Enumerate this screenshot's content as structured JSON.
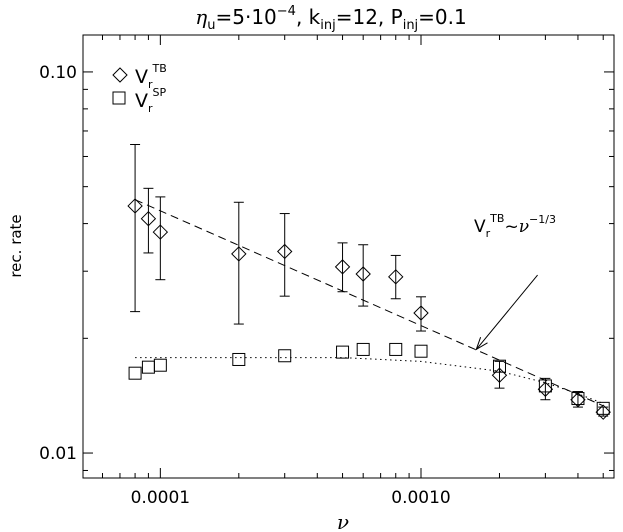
{
  "chart_data": {
    "type": "scatter",
    "title": {
      "eta_symbol": "η",
      "eta_sub": "u",
      "eta_value_pre": "=5·10",
      "eta_exp": "−4",
      "k_main": ", k",
      "k_sub": "inj",
      "k_value": "=12, ",
      "p_main": "P",
      "p_sub": "inj",
      "p_value": "=0.1"
    },
    "xlabel": "ν",
    "ylabel": "rec. rate",
    "x_scale": "log",
    "y_scale": "log",
    "xlim": [
      5.05e-05,
      0.0055
    ],
    "ylim": [
      0.0086,
      0.125
    ],
    "x_ticks": [
      {
        "value": 0.0001,
        "label": "0.0001"
      },
      {
        "value": 0.001,
        "label": "0.0010"
      }
    ],
    "y_ticks": [
      {
        "value": 0.01,
        "label": "0.01"
      },
      {
        "value": 0.1,
        "label": "0.10"
      }
    ],
    "legend": {
      "placement": "top-left",
      "entries": [
        {
          "marker": "diamond",
          "main": "V",
          "sub": "r",
          "sup": "TB"
        },
        {
          "marker": "square",
          "main": "V",
          "sub": "r",
          "sup": "SP"
        }
      ]
    },
    "series": [
      {
        "marker": "diamond",
        "points": [
          {
            "x": 8e-05,
            "y": 0.0445,
            "ylo": 0.0235,
            "yhi": 0.0645
          },
          {
            "x": 9e-05,
            "y": 0.0412,
            "ylo": 0.0335,
            "yhi": 0.0495
          },
          {
            "x": 0.0001,
            "y": 0.038,
            "ylo": 0.0285,
            "yhi": 0.047
          },
          {
            "x": 0.0002,
            "y": 0.0333,
            "ylo": 0.0218,
            "yhi": 0.0455
          },
          {
            "x": 0.0003,
            "y": 0.0338,
            "ylo": 0.0258,
            "yhi": 0.0425
          },
          {
            "x": 0.0005,
            "y": 0.0308,
            "ylo": 0.0265,
            "yhi": 0.0356
          },
          {
            "x": 0.0006,
            "y": 0.0295,
            "ylo": 0.0243,
            "yhi": 0.0352
          },
          {
            "x": 0.0008,
            "y": 0.029,
            "ylo": 0.0254,
            "yhi": 0.033
          },
          {
            "x": 0.001,
            "y": 0.0233,
            "ylo": 0.0209,
            "yhi": 0.0257
          },
          {
            "x": 0.002,
            "y": 0.016,
            "ylo": 0.0148,
            "yhi": 0.0174
          },
          {
            "x": 0.003,
            "y": 0.0147,
            "ylo": 0.0138,
            "yhi": 0.0157
          },
          {
            "x": 0.004,
            "y": 0.0138,
            "ylo": 0.0132,
            "yhi": 0.0145
          },
          {
            "x": 0.005,
            "y": 0.0128,
            "ylo": 0.0125,
            "yhi": 0.0132
          }
        ]
      },
      {
        "marker": "square",
        "points": [
          {
            "x": 8e-05,
            "y": 0.0162
          },
          {
            "x": 9e-05,
            "y": 0.0168
          },
          {
            "x": 0.0001,
            "y": 0.017
          },
          {
            "x": 0.0002,
            "y": 0.0176
          },
          {
            "x": 0.0003,
            "y": 0.018
          },
          {
            "x": 0.0005,
            "y": 0.0184
          },
          {
            "x": 0.0006,
            "y": 0.0187
          },
          {
            "x": 0.0008,
            "y": 0.0187
          },
          {
            "x": 0.001,
            "y": 0.0185
          },
          {
            "x": 0.002,
            "y": 0.0169
          },
          {
            "x": 0.003,
            "y": 0.015
          },
          {
            "x": 0.004,
            "y": 0.0139
          },
          {
            "x": 0.005,
            "y": 0.0131
          }
        ]
      }
    ],
    "fit_lines": [
      {
        "style": "dashed",
        "x": [
          8e-05,
          0.005
        ],
        "y": [
          0.0462,
          0.0133
        ]
      },
      {
        "style": "dotted",
        "x": [
          8e-05,
          0.0002,
          0.0005,
          0.001,
          0.002,
          0.003,
          0.004,
          0.005
        ],
        "y": [
          0.0178,
          0.0178,
          0.0178,
          0.0174,
          0.0164,
          0.0153,
          0.0143,
          0.0135
        ]
      }
    ],
    "annotation": {
      "main": "V",
      "sub": "r",
      "sup": "TB",
      "tilde": "~",
      "nu": "ν",
      "exp": "−1/3",
      "arrow_to": {
        "x": 0.00163,
        "y": 0.0187
      },
      "arrow_from": {
        "x": 0.0028,
        "y": 0.0293
      }
    }
  }
}
